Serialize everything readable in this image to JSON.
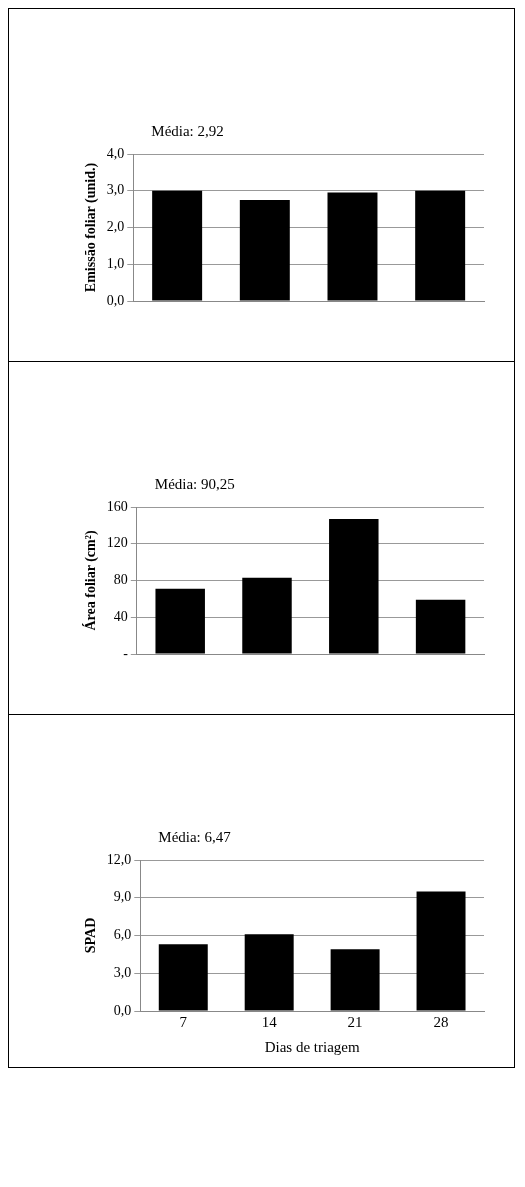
{
  "chart_data": [
    {
      "type": "bar",
      "title": "Média: 2,92",
      "ylabel": "Emissão foliar (unid.)",
      "categories": [
        "7",
        "14",
        "21",
        "28"
      ],
      "values": [
        3.0,
        2.75,
        2.95,
        3.0
      ],
      "color": "#000000",
      "ylim": [
        0,
        4
      ],
      "yticks": [
        {
          "value": 0,
          "label": "0,0"
        },
        {
          "value": 1,
          "label": "1,0"
        },
        {
          "value": 2,
          "label": "2,0"
        },
        {
          "value": 3,
          "label": "3,0"
        },
        {
          "value": 4,
          "label": "4,0"
        }
      ],
      "grid": "y",
      "legend": false,
      "tick_labels": "y"
    },
    {
      "type": "bar",
      "title": "Média: 90,25",
      "ylabel": "Área foliar (cm²)",
      "categories": [
        "7",
        "14",
        "21",
        "28"
      ],
      "values": [
        71,
        83,
        147,
        59
      ],
      "color": "#000000",
      "ylim": [
        0,
        160
      ],
      "yticks": [
        {
          "value": 0,
          "label": "-"
        },
        40,
        80,
        120,
        160
      ],
      "grid": "y",
      "legend": false,
      "tick_labels": "y"
    },
    {
      "type": "bar",
      "title": "Média: 6,47",
      "ylabel": "SPAD",
      "xlabel": "Dias de triagem",
      "categories": [
        "7",
        "14",
        "21",
        "28"
      ],
      "values": [
        5.3,
        6.1,
        4.9,
        9.5
      ],
      "color": "#000000",
      "ylim": [
        0,
        12
      ],
      "yticks": [
        {
          "value": 0,
          "label": "0,0"
        },
        {
          "value": 3,
          "label": "3,0"
        },
        {
          "value": 6,
          "label": "6,0"
        },
        {
          "value": 9,
          "label": "9,0"
        },
        {
          "value": 12,
          "label": "12,0"
        }
      ],
      "grid": "y",
      "legend": false
    }
  ]
}
